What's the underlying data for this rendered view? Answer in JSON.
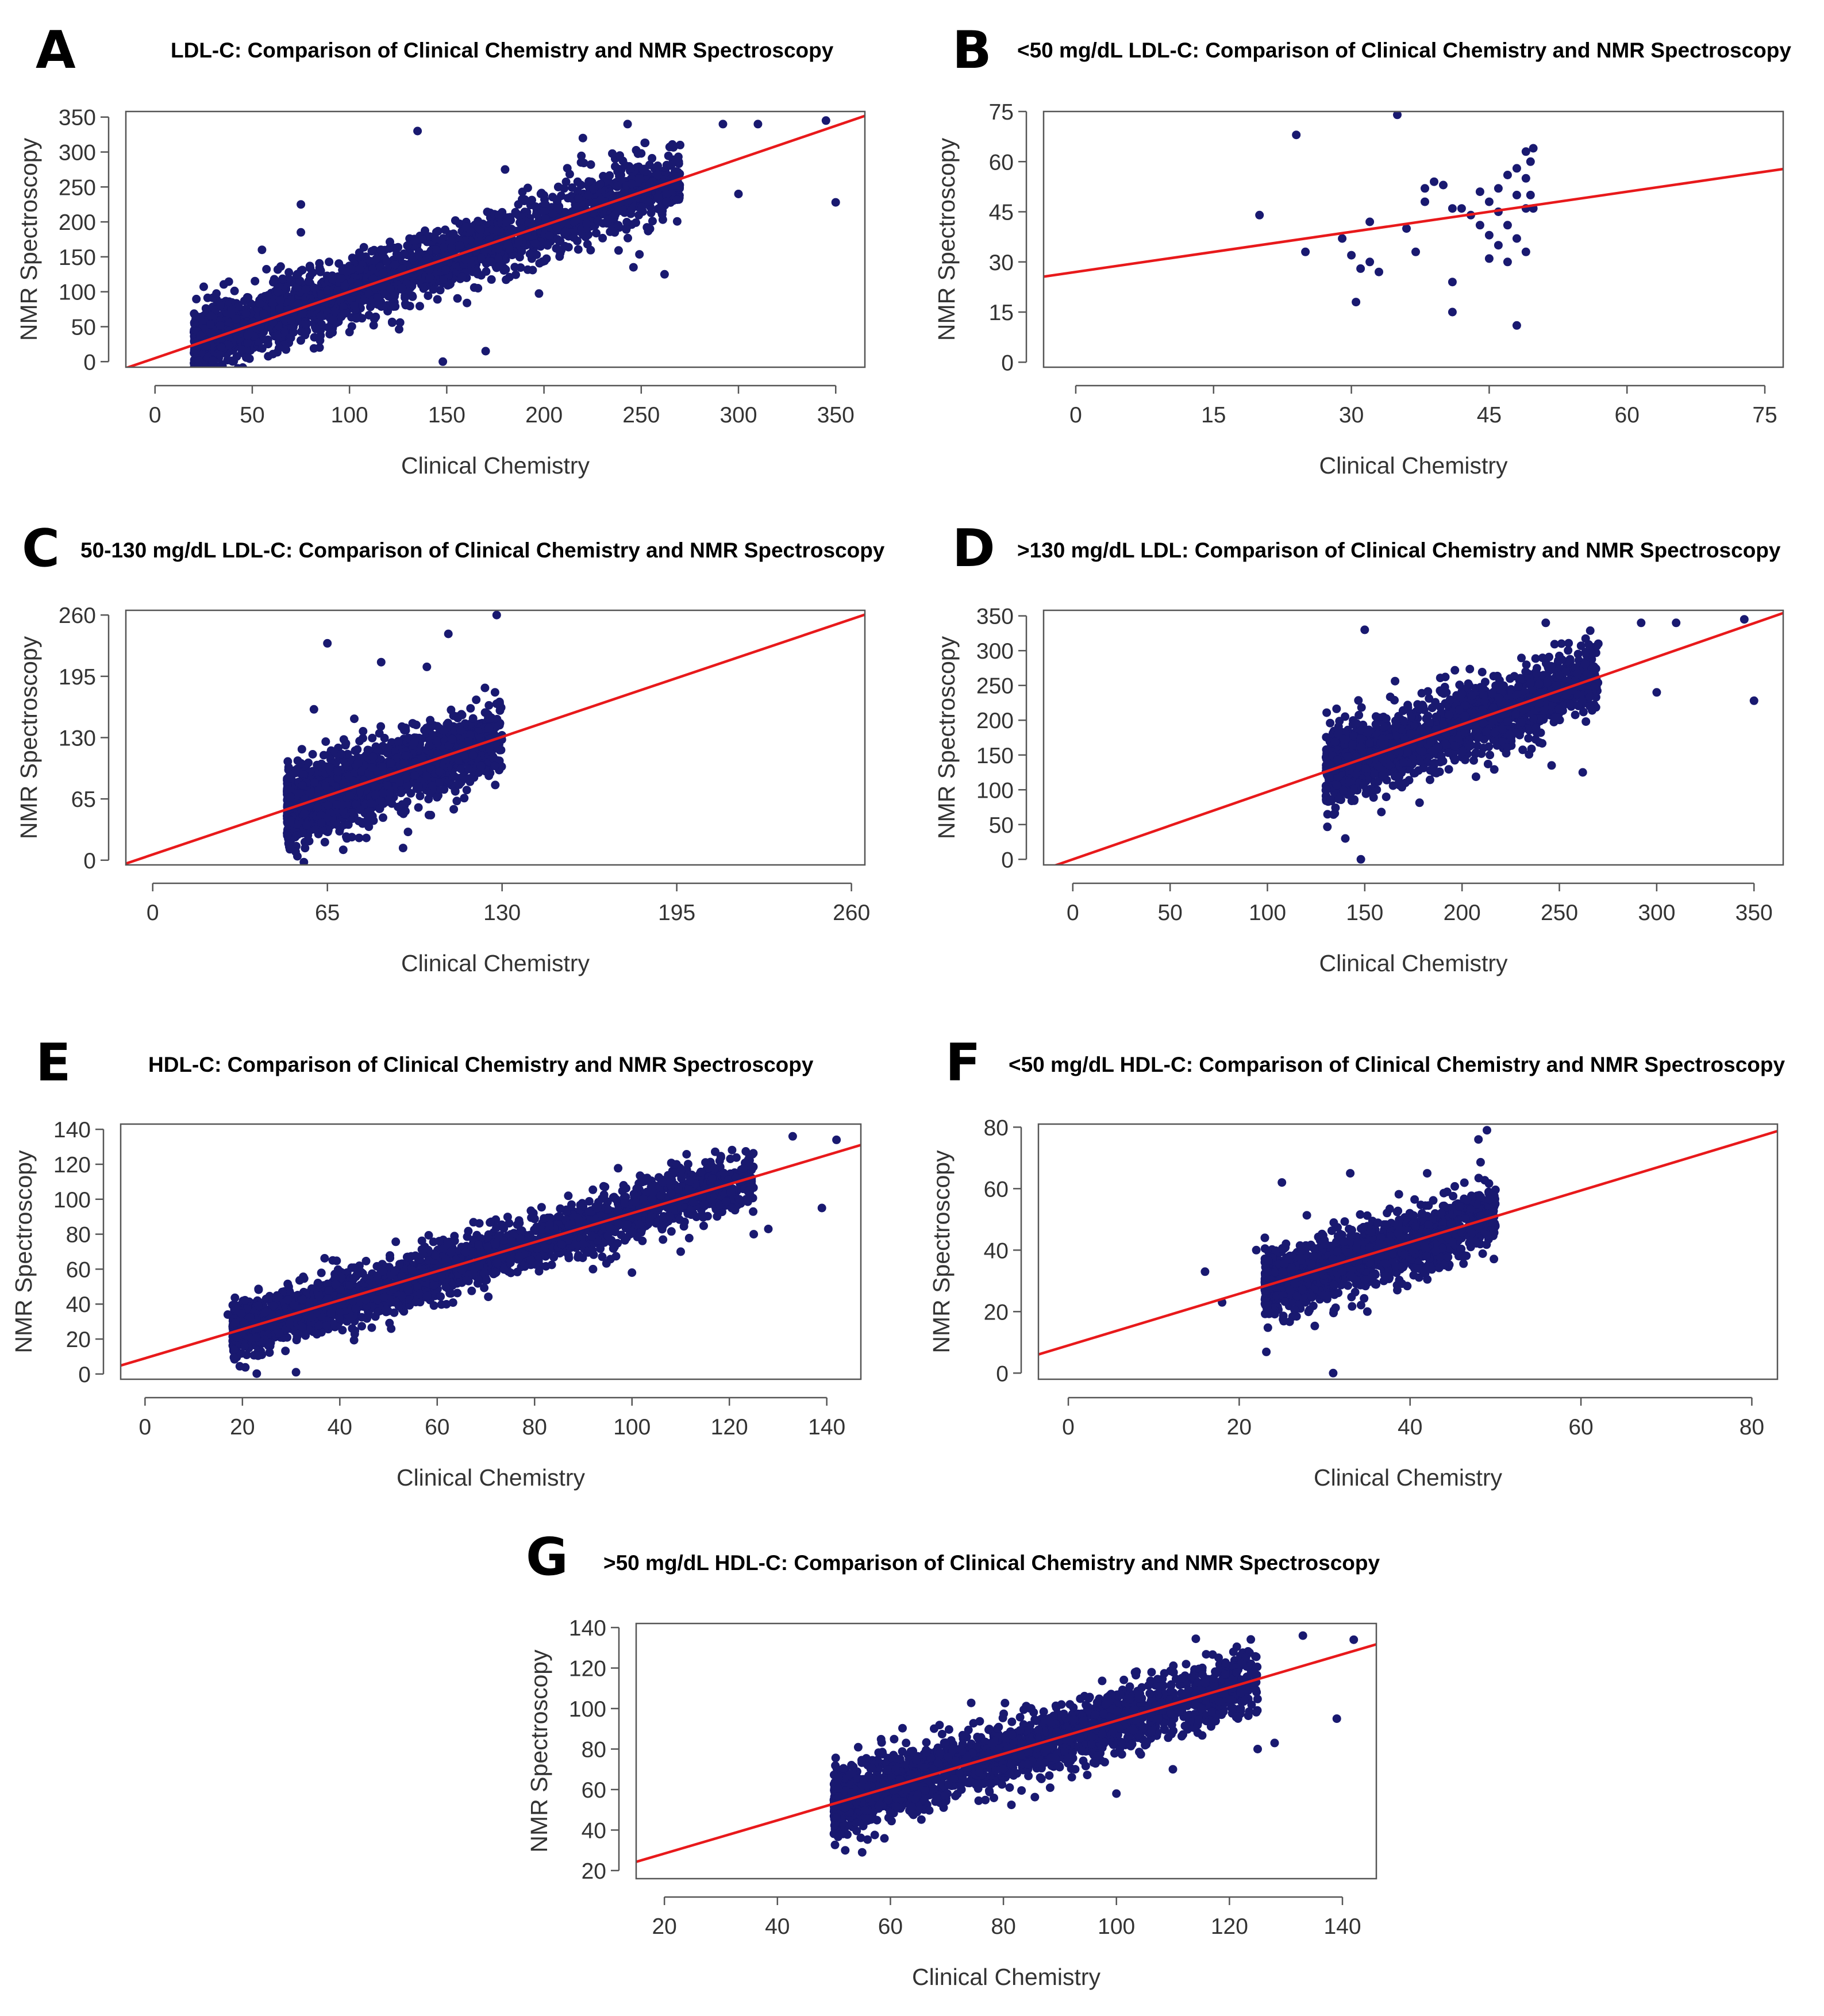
{
  "figure": {
    "point_color": "#191970",
    "line_color": "#e8191b",
    "xlabel": "Clinical Chemistry",
    "ylabel": "NMR Spectroscopy"
  },
  "chart_data": [
    {
      "panel": "A",
      "type": "scatter",
      "title": "LDL-C: Comparison of Clinical Chemistry and NMR Spectroscopy",
      "xlabel": "Clinical Chemistry",
      "ylabel": "NMR Spectroscopy",
      "xlim": [
        -15,
        365
      ],
      "ylim": [
        -8,
        358
      ],
      "xticks": [
        0,
        50,
        100,
        150,
        200,
        250,
        300,
        350
      ],
      "yticks": [
        0,
        50,
        100,
        150,
        200,
        250,
        300,
        350
      ],
      "fit_line": {
        "slope": 0.95,
        "intercept": 5
      },
      "cloud": {
        "xmin": 20,
        "xmax": 270,
        "density": 0.75,
        "core_spread": 24,
        "n": 2600
      },
      "outliers": [
        [
          148,
          0
        ],
        [
          200,
          238
        ],
        [
          243,
          340
        ],
        [
          300,
          240
        ],
        [
          310,
          340
        ],
        [
          345,
          345
        ],
        [
          350,
          228
        ],
        [
          262,
          125
        ],
        [
          246,
          135
        ],
        [
          135,
          330
        ],
        [
          170,
          15
        ],
        [
          55,
          160
        ],
        [
          75,
          225
        ],
        [
          75,
          185
        ],
        [
          270,
          310
        ],
        [
          250,
          298
        ],
        [
          292,
          340
        ],
        [
          220,
          320
        ],
        [
          180,
          275
        ]
      ]
    },
    {
      "panel": "B",
      "type": "scatter",
      "title": "<50 mg/dL LDL-C: Comparison of Clinical Chemistry and NMR Spectroscopy",
      "xlabel": "Clinical Chemistry",
      "ylabel": "NMR Spectroscopy",
      "xlim": [
        -3.5,
        77
      ],
      "ylim": [
        -1.5,
        75
      ],
      "xticks": [
        0,
        15,
        30,
        45,
        60,
        75
      ],
      "yticks": [
        0,
        15,
        30,
        45,
        60,
        75
      ],
      "fit_line": {
        "slope": 0.4,
        "intercept": 27
      },
      "points": [
        [
          20,
          44
        ],
        [
          24,
          68
        ],
        [
          25,
          33
        ],
        [
          29,
          37
        ],
        [
          30,
          32
        ],
        [
          30.5,
          18
        ],
        [
          31,
          28
        ],
        [
          32,
          42
        ],
        [
          32,
          30
        ],
        [
          33,
          27
        ],
        [
          35,
          74
        ],
        [
          36,
          40
        ],
        [
          37,
          33
        ],
        [
          38,
          48
        ],
        [
          38,
          52
        ],
        [
          39,
          54
        ],
        [
          40,
          53
        ],
        [
          41,
          46
        ],
        [
          41,
          24
        ],
        [
          41,
          15
        ],
        [
          42,
          46
        ],
        [
          43,
          44
        ],
        [
          44,
          51
        ],
        [
          44,
          41
        ],
        [
          45,
          48
        ],
        [
          45,
          38
        ],
        [
          45,
          31
        ],
        [
          46,
          52
        ],
        [
          46,
          45
        ],
        [
          46,
          35
        ],
        [
          47,
          56
        ],
        [
          47,
          41
        ],
        [
          47,
          30
        ],
        [
          48,
          58
        ],
        [
          48,
          50
        ],
        [
          48,
          11
        ],
        [
          48,
          37
        ],
        [
          49,
          63
        ],
        [
          49,
          46
        ],
        [
          49,
          55
        ],
        [
          49,
          33
        ],
        [
          49.5,
          60
        ],
        [
          49.5,
          50
        ],
        [
          49.8,
          64
        ],
        [
          49.8,
          46
        ]
      ]
    },
    {
      "panel": "C",
      "type": "scatter",
      "title": "50-130 mg/dL LDL-C: Comparison of Clinical Chemistry and NMR Spectroscopy",
      "xlabel": "Clinical Chemistry",
      "ylabel": "NMR Spectroscopy",
      "xlim": [
        -10,
        265
      ],
      "ylim": [
        -5,
        265
      ],
      "xticks": [
        0,
        65,
        130,
        195,
        260
      ],
      "yticks": [
        0,
        65,
        130,
        195,
        260
      ],
      "fit_line": {
        "slope": 0.96,
        "intercept": 6
      },
      "cloud": {
        "xmin": 50,
        "xmax": 130,
        "density": 1.0,
        "core_spread": 20,
        "n": 1800
      },
      "outliers": [
        [
          128,
          260
        ],
        [
          65,
          230
        ],
        [
          110,
          240
        ],
        [
          102,
          205
        ],
        [
          85,
          210
        ],
        [
          60,
          160
        ],
        [
          75,
          150
        ],
        [
          72,
          25
        ],
        [
          95,
          30
        ]
      ]
    },
    {
      "panel": "D",
      "type": "scatter",
      "title": ">130 mg/dL LDL: Comparison of Clinical Chemistry and NMR Spectroscopy",
      "xlabel": "Clinical Chemistry",
      "ylabel": "NMR Spectroscopy",
      "xlim": [
        -15,
        365
      ],
      "ylim": [
        -8,
        358
      ],
      "xticks": [
        0,
        50,
        100,
        150,
        200,
        250,
        300,
        350
      ],
      "yticks": [
        0,
        50,
        100,
        150,
        200,
        250,
        300,
        350
      ],
      "fit_line": {
        "slope": 0.97,
        "intercept": 0
      },
      "cloud": {
        "xmin": 130,
        "xmax": 270,
        "density": 0.55,
        "core_spread": 26,
        "n": 1700
      },
      "outliers": [
        [
          148,
          0
        ],
        [
          140,
          30
        ],
        [
          150,
          330
        ],
        [
          200,
          238
        ],
        [
          243,
          340
        ],
        [
          300,
          240
        ],
        [
          310,
          340
        ],
        [
          345,
          345
        ],
        [
          350,
          228
        ],
        [
          262,
          125
        ],
        [
          246,
          135
        ],
        [
          292,
          340
        ],
        [
          270,
          310
        ]
      ]
    },
    {
      "panel": "E",
      "type": "scatter",
      "title": "HDL-C: Comparison of Clinical Chemistry and NMR Spectroscopy",
      "xlabel": "Clinical Chemistry",
      "ylabel": "NMR Spectroscopy",
      "xlim": [
        -5,
        147
      ],
      "ylim": [
        -3,
        143
      ],
      "xticks": [
        0,
        20,
        40,
        60,
        80,
        100,
        120,
        140
      ],
      "yticks": [
        0,
        20,
        40,
        60,
        80,
        100,
        120,
        140
      ],
      "fit_line": {
        "slope": 0.83,
        "intercept": 9
      },
      "cloud": {
        "xmin": 18,
        "xmax": 125,
        "density": 0.8,
        "core_spread": 8,
        "n": 2600
      },
      "outliers": [
        [
          31,
          1
        ],
        [
          17,
          34
        ],
        [
          133,
          136
        ],
        [
          142,
          134
        ],
        [
          139,
          95
        ],
        [
          125,
          80
        ],
        [
          128,
          83
        ],
        [
          115,
          106
        ],
        [
          122,
          100
        ],
        [
          100,
          58
        ],
        [
          92,
          60
        ],
        [
          110,
          70
        ]
      ]
    },
    {
      "panel": "F",
      "type": "scatter",
      "title": "<50 mg/dL HDL-C: Comparison of Clinical Chemistry and NMR Spectroscopy",
      "xlabel": "Clinical Chemistry",
      "ylabel": "NMR Spectroscopy",
      "xlim": [
        -3.5,
        83
      ],
      "ylim": [
        -2,
        81
      ],
      "xticks": [
        0,
        20,
        40,
        60,
        80
      ],
      "yticks": [
        0,
        20,
        40,
        60,
        80
      ],
      "fit_line": {
        "slope": 0.84,
        "intercept": 9
      },
      "cloud": {
        "xmin": 23,
        "xmax": 50,
        "density": 1.0,
        "core_spread": 5,
        "n": 1600
      },
      "outliers": [
        [
          31,
          0
        ],
        [
          16,
          33
        ],
        [
          18,
          23
        ],
        [
          22,
          40
        ],
        [
          23,
          44
        ],
        [
          25,
          62
        ],
        [
          49,
          79
        ],
        [
          48,
          76
        ],
        [
          42,
          65
        ],
        [
          33,
          65
        ],
        [
          35,
          20
        ]
      ]
    },
    {
      "panel": "G",
      "type": "scatter",
      "title": ">50 mg/dL HDL-C: Comparison of Clinical Chemistry and NMR Spectroscopy",
      "xlabel": "Clinical Chemistry",
      "ylabel": "NMR Spectroscopy",
      "xlim": [
        15,
        146
      ],
      "ylim": [
        16,
        142
      ],
      "xticks": [
        20,
        40,
        60,
        80,
        100,
        120,
        140
      ],
      "yticks": [
        20,
        40,
        60,
        80,
        100,
        120,
        140
      ],
      "fit_line": {
        "slope": 0.82,
        "intercept": 12
      },
      "cloud": {
        "xmin": 50,
        "xmax": 125,
        "density": 0.8,
        "core_spread": 8,
        "n": 2200
      },
      "outliers": [
        [
          133,
          136
        ],
        [
          142,
          134
        ],
        [
          139,
          95
        ],
        [
          125,
          80
        ],
        [
          128,
          83
        ],
        [
          115,
          106
        ],
        [
          122,
          100
        ],
        [
          100,
          58
        ],
        [
          110,
          70
        ],
        [
          52,
          30
        ],
        [
          55,
          29
        ]
      ]
    }
  ]
}
